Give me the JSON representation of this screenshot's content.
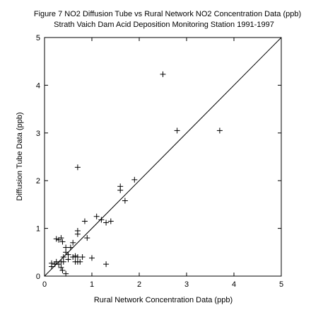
{
  "chart_data": {
    "type": "scatter",
    "title": "Figure 7  NO2 Diffusion Tube vs Rural Network NO2 Concentration Data (ppb)",
    "subtitle": "Strath Vaich Dam Acid Deposition Monitoring Station 1991-1997",
    "xlabel": "Rural Network Concentration Data (ppb)",
    "ylabel": "Diffusion Tube Data (ppb)",
    "xlim": [
      0,
      5
    ],
    "ylim": [
      0,
      5
    ],
    "xticks": [
      "0",
      "1",
      "2",
      "3",
      "4",
      "5"
    ],
    "yticks": [
      "0",
      "1",
      "2",
      "3",
      "4",
      "5"
    ],
    "grid": false,
    "marker": "plus",
    "reference_line": {
      "x": [
        0,
        5
      ],
      "y": [
        0,
        5
      ]
    },
    "points": [
      [
        0.15,
        0.2
      ],
      [
        0.15,
        0.27
      ],
      [
        0.22,
        0.25
      ],
      [
        0.25,
        0.3
      ],
      [
        0.25,
        0.78
      ],
      [
        0.3,
        0.76
      ],
      [
        0.35,
        0.8
      ],
      [
        0.38,
        0.72
      ],
      [
        0.3,
        0.25
      ],
      [
        0.35,
        0.3
      ],
      [
        0.35,
        0.18
      ],
      [
        0.38,
        0.12
      ],
      [
        0.4,
        0.3
      ],
      [
        0.4,
        0.4
      ],
      [
        0.45,
        0.05
      ],
      [
        0.45,
        0.5
      ],
      [
        0.45,
        0.6
      ],
      [
        0.5,
        0.35
      ],
      [
        0.5,
        0.45
      ],
      [
        0.55,
        0.6
      ],
      [
        0.6,
        0.4
      ],
      [
        0.6,
        0.7
      ],
      [
        0.65,
        0.3
      ],
      [
        0.65,
        0.42
      ],
      [
        0.7,
        0.3
      ],
      [
        0.7,
        0.4
      ],
      [
        0.7,
        0.88
      ],
      [
        0.7,
        0.95
      ],
      [
        0.7,
        2.28
      ],
      [
        0.75,
        0.3
      ],
      [
        0.8,
        0.4
      ],
      [
        0.9,
        0.8
      ],
      [
        0.85,
        1.15
      ],
      [
        1.0,
        0.38
      ],
      [
        1.1,
        1.25
      ],
      [
        1.2,
        1.18
      ],
      [
        1.3,
        0.25
      ],
      [
        1.3,
        1.12
      ],
      [
        1.4,
        1.15
      ],
      [
        1.6,
        1.8
      ],
      [
        1.6,
        1.88
      ],
      [
        1.7,
        1.58
      ],
      [
        1.9,
        2.02
      ],
      [
        2.5,
        4.23
      ],
      [
        2.8,
        3.05
      ],
      [
        3.7,
        3.05
      ]
    ]
  }
}
